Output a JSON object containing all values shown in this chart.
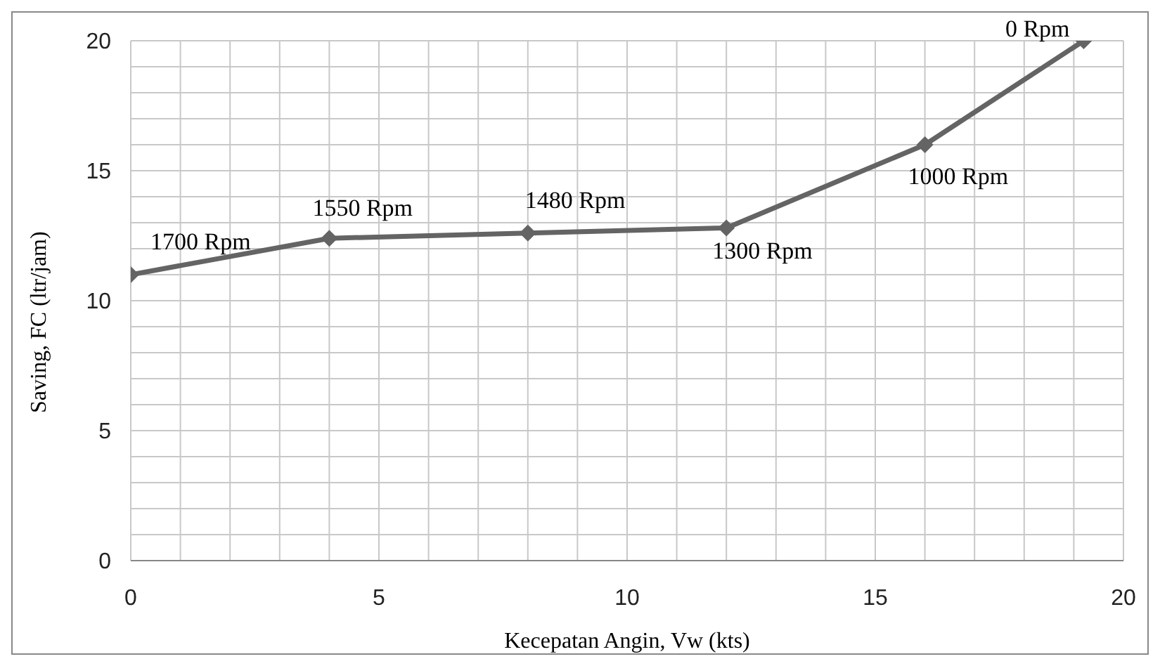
{
  "chart_data": {
    "type": "line",
    "xlabel": "Kecepatan Angin, Vw (kts)",
    "ylabel": "Saving, FC (ltr/jam)",
    "x": [
      0,
      4,
      8,
      12,
      16,
      19.2
    ],
    "series": [
      {
        "color": "#646464",
        "values": [
          11,
          12.4,
          12.6,
          12.8,
          16,
          20
        ]
      }
    ],
    "xlim": [
      0,
      20
    ],
    "xticks": [
      0,
      {
        "value": 1,
        "label": null
      },
      {
        "value": 2,
        "label": null
      },
      {
        "value": 3,
        "label": null
      },
      {
        "value": 4,
        "label": null
      },
      5,
      {
        "value": 6,
        "label": null
      },
      {
        "value": 7,
        "label": null
      },
      {
        "value": 8,
        "label": null
      },
      {
        "value": 9,
        "label": null
      },
      10,
      {
        "value": 11,
        "label": null
      },
      {
        "value": 12,
        "label": null
      },
      {
        "value": 13,
        "label": null
      },
      {
        "value": 14,
        "label": null
      },
      15,
      {
        "value": 16,
        "label": null
      },
      {
        "value": 17,
        "label": null
      },
      {
        "value": 18,
        "label": null
      },
      {
        "value": 19,
        "label": null
      },
      20
    ],
    "ylim": [
      0,
      20
    ],
    "yticks": [
      0,
      {
        "value": 1,
        "label": null
      },
      {
        "value": 2,
        "label": null
      },
      {
        "value": 3,
        "label": null
      },
      {
        "value": 4,
        "label": null
      },
      5,
      {
        "value": 6,
        "label": null
      },
      {
        "value": 7,
        "label": null
      },
      {
        "value": 8,
        "label": null
      },
      {
        "value": 9,
        "label": null
      },
      10,
      {
        "value": 11,
        "label": null
      },
      {
        "value": 12,
        "label": null
      },
      {
        "value": 13,
        "label": null
      },
      {
        "value": 14,
        "label": null
      },
      15,
      {
        "value": 16,
        "label": null
      },
      {
        "value": 17,
        "label": null
      },
      {
        "value": 18,
        "label": null
      },
      {
        "value": 19,
        "label": null
      },
      20
    ],
    "annotations": [
      {
        "text": "1700 Rpm",
        "x": 0,
        "y": 11
      },
      {
        "text": "1550 Rpm",
        "x": 4,
        "y": 12.4
      },
      {
        "text": "1480 Rpm",
        "x": 8,
        "y": 12.6
      },
      {
        "text": "1300 Rpm",
        "x": 12,
        "y": 12.8
      },
      {
        "text": "1000 Rpm",
        "x": 16,
        "y": 16
      },
      {
        "text": "0 Rpm",
        "x": 19.2,
        "y": 20
      }
    ],
    "grid": true,
    "marker": "diamond",
    "line_style": "solid",
    "legend": false
  }
}
